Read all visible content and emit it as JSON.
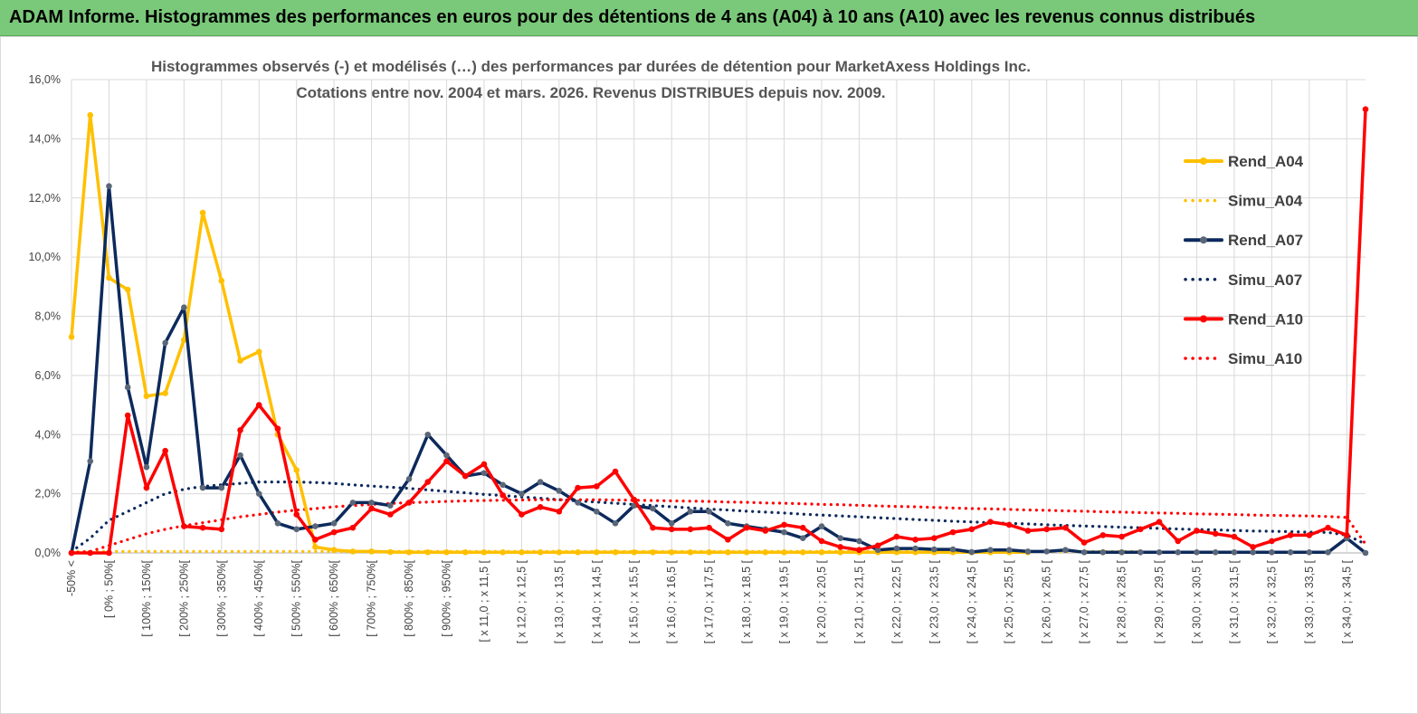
{
  "banner": {
    "title": "ADAM Informe. Histogrammes des performances en euros pour des détentions de 4 ans (A04) à 10 ans (A10) avec les revenus connus distribués"
  },
  "colors": {
    "banner_bg": "#7ac97a",
    "A04": "#ffc000",
    "A07": "#0d2a5c",
    "A07_marker": "#5b6778",
    "A10": "#ff0000",
    "grid": "#d9d9d9",
    "axis": "#bfbfbf"
  },
  "chart_data": {
    "type": "line",
    "title": [
      "Histogrammes observés (-)  et modélisés (…) des performances par durées de détention pour MarketAxess Holdings Inc.",
      "Cotations entre nov. 2004 et mars. 2026. Revenus DISTRIBUES depuis nov. 2009."
    ],
    "xlabel": "",
    "ylabel": "",
    "y_range_percent": [
      0,
      16
    ],
    "y_ticks": [
      "0,0%",
      "2,0%",
      "4,0%",
      "6,0%",
      "8,0%",
      "10,0%",
      "12,0%",
      "14,0%",
      "16,0%"
    ],
    "grid": true,
    "legend_position": "right",
    "category_count": 70,
    "x_tick_labels": [
      "-50% <",
      "[ 0% ; 50%[",
      "[ 100% ; 150%[",
      "[ 200% ; 250%[",
      "[ 300% ; 350%[",
      "[ 400% ; 450%[",
      "[ 500% ; 550%[",
      "[ 600% ; 650%[",
      "[ 700% ; 750%[",
      "[ 800% ; 850%[",
      "[ 900% ; 950%[",
      "[ x 11,0 ; x 11,5 [",
      "[ x 12,0 ; x 12,5 [",
      "[ x 13,0 ; x 13,5 [",
      "[ x 14,0 ; x 14,5 [",
      "[ x 15,0 ; x 15,5 [",
      "[ x 16,0 ; x 16,5 [",
      "[ x 17,0 ; x 17,5 [",
      "[ x 18,0 ; x 18,5 [",
      "[ x 19,0 ; x 19,5 [",
      "[ x 20,0 ; x 20,5 [",
      "[ x 21,0 ; x 21,5 [",
      "[ x 22,0 ; x 22,5 [",
      "[ x 23,0 ; x 23,5 [",
      "[ x 24,0 ; x 24,5 [",
      "[ x 25,0 ; x 25,5 [",
      "[ x 26,0 ; x 26,5 [",
      "[ x 27,0 ; x 27,5 [",
      "[ x 28,0 ; x 28,5 [",
      "[ x 29,0 ; x 29,5 [",
      "[ x 30,0 ; x 30,5 [",
      "[ x 31,0 ; x 31,5 [",
      "[ x 32,0 ; x 32,5 [",
      "[ x 33,0 ; x 33,5 [",
      "[ x 34,0 ; x 34,5 ["
    ],
    "series": [
      {
        "name": "Rend_A04",
        "style": "solid",
        "values": [
          7.3,
          14.8,
          9.3,
          8.9,
          5.3,
          5.4,
          7.2,
          11.5,
          9.2,
          6.5,
          6.8,
          4.0,
          2.8,
          0.2,
          0.1,
          0.05,
          0.05,
          0.03,
          0.02,
          0.02,
          0.02,
          0.02,
          0.02,
          0.02,
          0.02,
          0.02,
          0.02,
          0.02,
          0.02,
          0.02,
          0.02,
          0.02,
          0.02,
          0.02,
          0.02,
          0.02,
          0.02,
          0.02,
          0.02,
          0.02,
          0.02,
          0.02,
          0.02,
          0.02,
          0.02,
          0.02,
          0.02,
          0.02,
          0.02,
          0.02,
          0.02,
          0.02,
          null,
          null,
          null,
          null,
          null,
          null,
          null,
          null,
          null,
          null,
          null,
          null,
          null,
          null,
          null,
          null,
          null,
          null
        ]
      },
      {
        "name": "Simu_A04",
        "style": "dotted",
        "values": [
          0.05,
          0.05,
          0.05,
          0.05,
          0.05,
          0.05,
          0.05,
          0.05,
          0.05,
          0.05,
          0.05,
          0.05,
          0.05,
          0.05,
          0.05,
          0.05,
          0.05,
          0.05,
          0.05,
          0.05,
          0.05,
          0.05,
          0.05,
          0.05,
          0.05,
          0.05,
          0.05,
          0.05,
          0.05,
          0.05,
          0.05,
          0.05,
          0.05,
          0.05,
          0.05,
          0.05,
          0.05,
          0.05,
          0.05,
          0.05,
          0.05,
          0.05,
          0.05,
          0.05,
          0.05,
          0.05,
          0.05,
          0.05,
          0.05,
          0.05,
          0.05,
          0.05,
          0.05,
          0.05,
          0.05,
          0.05,
          0.05,
          0.05,
          null,
          null,
          null,
          null,
          null,
          null,
          null,
          null,
          null,
          null,
          null,
          null
        ]
      },
      {
        "name": "Rend_A07",
        "style": "solid",
        "values": [
          0.0,
          3.1,
          12.4,
          5.6,
          2.9,
          7.1,
          8.3,
          2.2,
          2.2,
          3.3,
          2.0,
          1.0,
          0.8,
          0.9,
          1.0,
          1.7,
          1.7,
          1.6,
          2.5,
          4.0,
          3.3,
          2.6,
          2.7,
          2.3,
          2.0,
          2.4,
          2.1,
          1.7,
          1.4,
          1.0,
          1.6,
          1.5,
          1.0,
          1.4,
          1.4,
          1.0,
          0.9,
          0.8,
          0.7,
          0.5,
          0.9,
          0.5,
          0.4,
          0.1,
          0.15,
          0.15,
          0.12,
          0.12,
          0.03,
          0.1,
          0.1,
          0.05,
          0.05,
          0.1,
          0.02,
          0.02,
          0.02,
          0.02,
          0.02,
          0.02,
          0.02,
          0.02,
          0.02,
          0.02,
          0.02,
          0.02,
          0.02,
          0.02,
          0.5,
          0.0
        ]
      },
      {
        "name": "Simu_A07",
        "style": "dotted",
        "values": [
          0.05,
          0.5,
          1.1,
          1.4,
          1.7,
          2.0,
          2.15,
          2.25,
          2.3,
          2.35,
          2.4,
          2.4,
          2.4,
          2.38,
          2.35,
          2.3,
          2.26,
          2.22,
          2.18,
          2.13,
          2.08,
          2.03,
          1.98,
          1.94,
          1.89,
          1.85,
          1.8,
          1.76,
          1.72,
          1.68,
          1.64,
          1.6,
          1.56,
          1.52,
          1.48,
          1.45,
          1.41,
          1.38,
          1.35,
          1.31,
          1.28,
          1.25,
          1.22,
          1.19,
          1.16,
          1.13,
          1.1,
          1.07,
          1.05,
          1.02,
          1.0,
          0.98,
          0.95,
          0.93,
          0.91,
          0.89,
          0.87,
          0.85,
          0.83,
          0.81,
          0.79,
          0.78,
          0.76,
          0.74,
          0.73,
          0.72,
          0.7,
          0.69,
          0.6,
          0.3
        ]
      },
      {
        "name": "Rend_A10",
        "style": "solid",
        "values": [
          0.0,
          0.0,
          0.0,
          4.65,
          2.2,
          3.45,
          0.9,
          0.85,
          0.8,
          4.15,
          5.0,
          4.2,
          1.3,
          0.45,
          0.7,
          0.85,
          1.5,
          1.3,
          1.7,
          2.4,
          3.1,
          2.6,
          3.0,
          1.95,
          1.3,
          1.55,
          1.4,
          2.2,
          2.25,
          2.75,
          1.8,
          0.85,
          0.8,
          0.8,
          0.85,
          0.45,
          0.85,
          0.75,
          0.95,
          0.85,
          0.4,
          0.2,
          0.1,
          0.25,
          0.55,
          0.45,
          0.5,
          0.7,
          0.8,
          1.05,
          0.95,
          0.75,
          0.8,
          0.85,
          0.35,
          0.6,
          0.55,
          0.8,
          1.05,
          0.4,
          0.75,
          0.65,
          0.55,
          0.2,
          0.4,
          0.6,
          0.6,
          0.85,
          0.6,
          15.0
        ]
      },
      {
        "name": "Simu_A10",
        "style": "dotted",
        "values": [
          0.0,
          0.05,
          0.25,
          0.45,
          0.65,
          0.8,
          0.92,
          1.02,
          1.12,
          1.22,
          1.3,
          1.38,
          1.45,
          1.5,
          1.56,
          1.6,
          1.64,
          1.67,
          1.7,
          1.72,
          1.74,
          1.76,
          1.77,
          1.78,
          1.79,
          1.8,
          1.8,
          1.8,
          1.8,
          1.79,
          1.78,
          1.77,
          1.76,
          1.75,
          1.74,
          1.72,
          1.71,
          1.69,
          1.68,
          1.66,
          1.64,
          1.63,
          1.61,
          1.59,
          1.57,
          1.56,
          1.54,
          1.52,
          1.5,
          1.49,
          1.47,
          1.45,
          1.44,
          1.42,
          1.41,
          1.39,
          1.38,
          1.36,
          1.35,
          1.34,
          1.32,
          1.31,
          1.3,
          1.28,
          1.27,
          1.26,
          1.25,
          1.23,
          1.2,
          0.3
        ]
      }
    ]
  },
  "legend": {
    "items": [
      {
        "label": "Rend_A04"
      },
      {
        "label": "Simu_A04"
      },
      {
        "label": "Rend_A07"
      },
      {
        "label": "Simu_A07"
      },
      {
        "label": "Rend_A10"
      },
      {
        "label": "Simu_A10"
      }
    ]
  }
}
